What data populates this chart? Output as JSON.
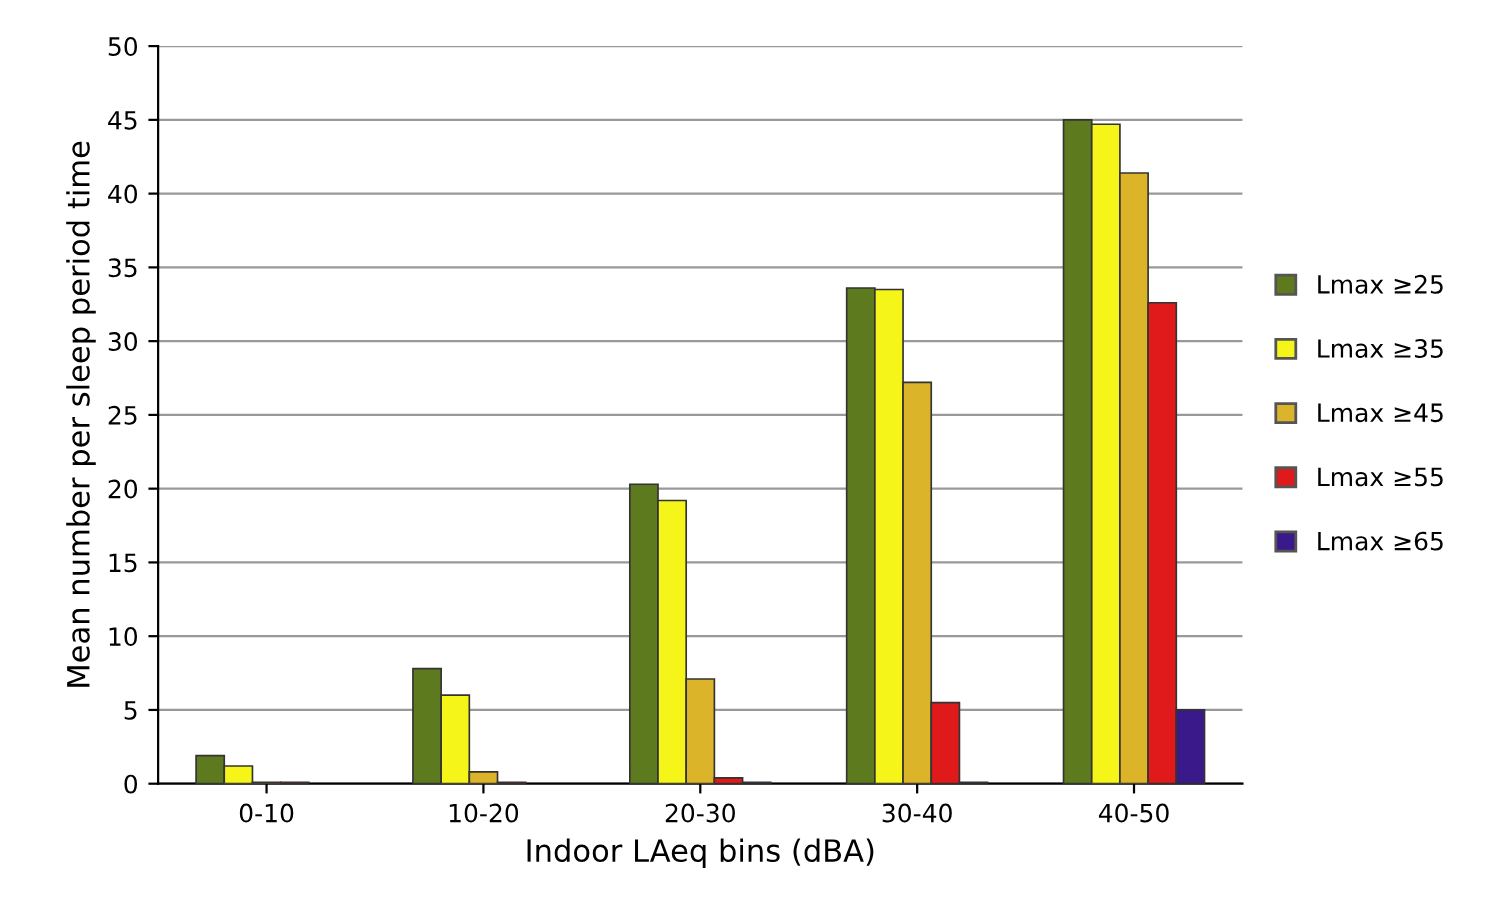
{
  "chart_data": {
    "type": "bar",
    "xlabel": "Indoor LAeq bins (dBA)",
    "ylabel": "Mean number per sleep period time",
    "categories": [
      "0-10",
      "10-20",
      "20-30",
      "30-40",
      "40-50"
    ],
    "series": [
      {
        "name": "Lmax ≥25",
        "color": "#5e7a1f",
        "values": [
          1.9,
          7.8,
          20.3,
          33.6,
          45.0
        ]
      },
      {
        "name": "Lmax ≥35",
        "color": "#f5f51a",
        "values": [
          1.2,
          6.0,
          19.2,
          33.5,
          44.7
        ]
      },
      {
        "name": "Lmax ≥45",
        "color": "#dcb42a",
        "values": [
          0.1,
          0.8,
          7.1,
          27.2,
          41.4
        ]
      },
      {
        "name": "Lmax ≥55",
        "color": "#e01a1a",
        "values": [
          0.1,
          0.1,
          0.4,
          5.5,
          32.6
        ]
      },
      {
        "name": "Lmax ≥65",
        "color": "#3a1a8a",
        "values": [
          0.0,
          0.0,
          0.1,
          0.1,
          5.0
        ]
      }
    ],
    "ylim": [
      0,
      50
    ],
    "yticks": [
      0,
      5,
      10,
      15,
      20,
      25,
      30,
      35,
      40,
      45,
      50
    ],
    "grid": "y",
    "legend": "right"
  }
}
